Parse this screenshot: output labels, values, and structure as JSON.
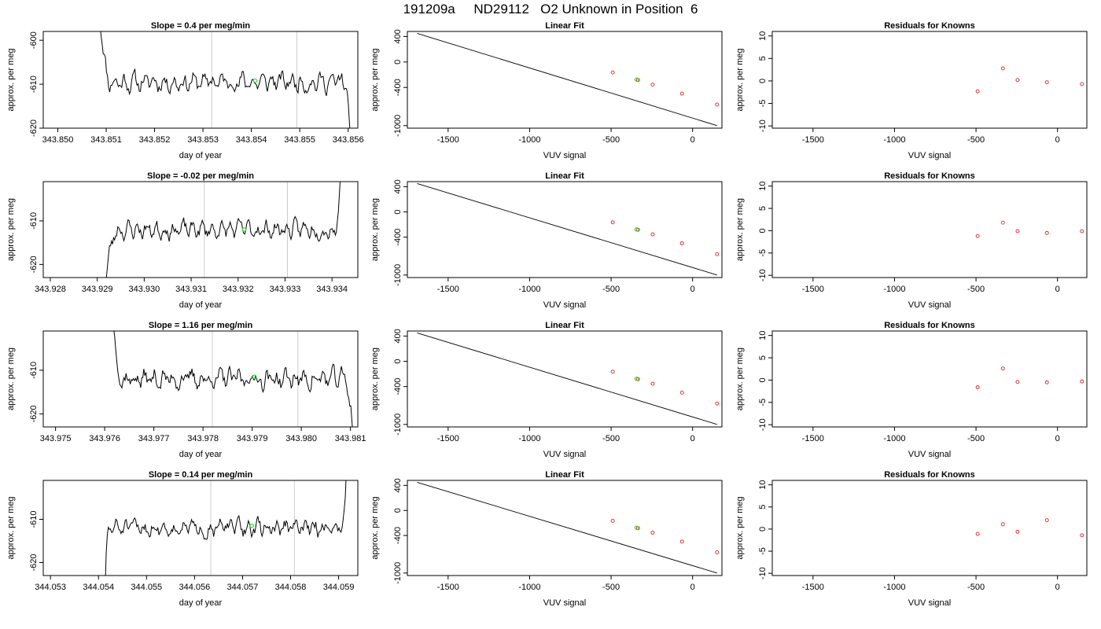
{
  "figure_title": "191209a     ND29112   O2 Unknown in Position  6",
  "chart_data": [
    {
      "row": 1,
      "panels": [
        {
          "type": "line",
          "panel": "timeseries",
          "title": "Slope =  0.4  per meg/min",
          "xlabel": "day of year",
          "ylabel": "approx. per meg",
          "xlim": [
            343.8497,
            343.8562
          ],
          "ylim": [
            -620,
            -598
          ],
          "xticks": [
            "343.850",
            "343.851",
            "343.852",
            "343.853",
            "343.854",
            "343.855",
            "343.856"
          ],
          "yticks": [
            "-600",
            "-610",
            "-620"
          ],
          "vlines": [
            343.85318,
            343.85494
          ],
          "highlight": {
            "x": 343.85408,
            "y": -609.2,
            "color": "#33dd33"
          },
          "trace": {
            "x_start": 343.85087,
            "x_end": 343.85605,
            "y_start": -594,
            "y_end": -623,
            "base": -609.5,
            "noise": 2.2,
            "points": 230,
            "seed": 11,
            "start_len": 10,
            "end_len": 6
          }
        },
        {
          "type": "scatter",
          "panel": "linear-fit",
          "title": "Linear Fit",
          "xlabel": "VUV signal",
          "ylabel": "approx. per meg",
          "xlim": [
            -1750,
            180
          ],
          "ylim": [
            -1040,
            480
          ],
          "xticks": [
            "-1500",
            "-1000",
            "-500",
            "0"
          ],
          "yticks": [
            "400",
            "0",
            "-400",
            "-1000"
          ],
          "line": {
            "x": [
              -1690,
              150
            ],
            "y": [
              450,
              -1000
            ]
          },
          "points": {
            "x": [
              -490,
              -335,
              -245,
              -65,
              150
            ],
            "y": [
              -165,
              -283,
              -355,
              -497,
              -669
            ]
          },
          "point_color": "#dd2222",
          "highlight": {
            "x": -343,
            "y": -277,
            "color": "#33dd33"
          }
        },
        {
          "type": "scatter",
          "panel": "residuals",
          "title": "Residuals for Knowns",
          "xlabel": "VUV signal",
          "ylabel": "approx. per meg",
          "xlim": [
            -1750,
            180
          ],
          "ylim": [
            -10.5,
            11
          ],
          "xticks": [
            "-1500",
            "-1000",
            "-500",
            "0"
          ],
          "yticks": [
            "10",
            "5",
            "0",
            "-5",
            "-10"
          ],
          "points": {
            "x": [
              -490,
              -335,
              -245,
              -65,
              150
            ],
            "y": [
              -2.3,
              2.8,
              0.2,
              -0.3,
              -0.7
            ]
          },
          "point_color": "#dd2222"
        }
      ]
    },
    {
      "row": 2,
      "panels": [
        {
          "type": "line",
          "panel": "timeseries",
          "title": "Slope =  -0.02  per meg/min",
          "xlabel": "day of year",
          "ylabel": "approx. per meg",
          "xlim": [
            343.92785,
            343.93455
          ],
          "ylim": [
            -623,
            -601
          ],
          "xticks": [
            "343.928",
            "343.929",
            "343.930",
            "343.931",
            "343.932",
            "343.933",
            "343.934"
          ],
          "yticks": [
            "-610",
            "-620"
          ],
          "vlines": [
            343.93128,
            343.93305
          ],
          "highlight": {
            "x": 343.93213,
            "y": -612,
            "color": "#33dd33"
          },
          "trace": {
            "x_start": 343.92915,
            "x_end": 343.93418,
            "y_start": -626,
            "y_end": -599,
            "base": -612,
            "noise": 2.0,
            "points": 230,
            "seed": 23,
            "start_len": 14,
            "end_len": 5
          }
        },
        {
          "type": "scatter",
          "panel": "linear-fit",
          "title": "Linear Fit",
          "xlabel": "VUV signal",
          "ylabel": "approx. per meg",
          "xlim": [
            -1750,
            180
          ],
          "ylim": [
            -1040,
            480
          ],
          "xticks": [
            "-1500",
            "-1000",
            "-500",
            "0"
          ],
          "yticks": [
            "400",
            "0",
            "-400",
            "-1000"
          ],
          "line": {
            "x": [
              -1690,
              150
            ],
            "y": [
              450,
              -1000
            ]
          },
          "points": {
            "x": [
              -490,
              -335,
              -245,
              -65,
              150
            ],
            "y": [
              -165,
              -283,
              -355,
              -497,
              -669
            ]
          },
          "point_color": "#dd2222",
          "highlight": {
            "x": -343,
            "y": -277,
            "color": "#33dd33"
          }
        },
        {
          "type": "scatter",
          "panel": "residuals",
          "title": "Residuals for Knowns",
          "xlabel": "VUV signal",
          "ylabel": "approx. per meg",
          "xlim": [
            -1750,
            180
          ],
          "ylim": [
            -10.5,
            11
          ],
          "xticks": [
            "-1500",
            "-1000",
            "-500",
            "0"
          ],
          "yticks": [
            "10",
            "5",
            "0",
            "-5",
            "-10"
          ],
          "points": {
            "x": [
              -490,
              -335,
              -245,
              -65,
              150
            ],
            "y": [
              -1.2,
              1.8,
              -0.1,
              -0.5,
              -0.1
            ]
          },
          "point_color": "#dd2222"
        }
      ]
    },
    {
      "row": 3,
      "panels": [
        {
          "type": "line",
          "panel": "timeseries",
          "title": "Slope =  1.16  per meg/min",
          "xlabel": "day of year",
          "ylabel": "approx. per meg",
          "xlim": [
            343.97475,
            343.98115
          ],
          "ylim": [
            -623,
            -601
          ],
          "xticks": [
            "343.975",
            "343.976",
            "343.977",
            "343.978",
            "343.979",
            "343.980",
            "343.981"
          ],
          "yticks": [
            "-610",
            "-620"
          ],
          "vlines": [
            343.97819,
            343.97993
          ],
          "highlight": {
            "x": 343.97905,
            "y": -611.5,
            "color": "#33dd33"
          },
          "trace": {
            "x_start": 343.97618,
            "x_end": 343.98105,
            "y_start": -599,
            "y_end": -625,
            "base": -612,
            "noise": 2.3,
            "points": 230,
            "seed": 37,
            "start_len": 8,
            "end_len": 8
          }
        },
        {
          "type": "scatter",
          "panel": "linear-fit",
          "title": "Linear Fit",
          "xlabel": "VUV signal",
          "ylabel": "approx. per meg",
          "xlim": [
            -1750,
            180
          ],
          "ylim": [
            -1040,
            480
          ],
          "xticks": [
            "-1500",
            "-1000",
            "-500",
            "0"
          ],
          "yticks": [
            "400",
            "0",
            "-400",
            "-1000"
          ],
          "line": {
            "x": [
              -1690,
              150
            ],
            "y": [
              450,
              -1000
            ]
          },
          "points": {
            "x": [
              -490,
              -335,
              -245,
              -65,
              150
            ],
            "y": [
              -165,
              -283,
              -355,
              -497,
              -669
            ]
          },
          "point_color": "#dd2222",
          "highlight": {
            "x": -343,
            "y": -277,
            "color": "#33dd33"
          }
        },
        {
          "type": "scatter",
          "panel": "residuals",
          "title": "Residuals for Knowns",
          "xlabel": "VUV signal",
          "ylabel": "approx. per meg",
          "xlim": [
            -1750,
            180
          ],
          "ylim": [
            -10.5,
            11
          ],
          "xticks": [
            "-1500",
            "-1000",
            "-500",
            "0"
          ],
          "yticks": [
            "10",
            "5",
            "0",
            "-5",
            "-10"
          ],
          "points": {
            "x": [
              -490,
              -335,
              -245,
              -65,
              150
            ],
            "y": [
              -1.6,
              2.6,
              -0.4,
              -0.5,
              -0.3
            ]
          },
          "point_color": "#dd2222"
        }
      ]
    },
    {
      "row": 4,
      "panels": [
        {
          "type": "line",
          "panel": "timeseries",
          "title": "Slope =  0.14  per meg/min",
          "xlabel": "day of year",
          "ylabel": "approx. per meg",
          "xlim": [
            344.05285,
            344.0594
          ],
          "ylim": [
            -623,
            -601
          ],
          "xticks": [
            "344.053",
            "344.054",
            "344.055",
            "344.056",
            "344.057",
            "344.058",
            "344.059"
          ],
          "yticks": [
            "-610",
            "-620"
          ],
          "vlines": [
            344.05634,
            344.05808
          ],
          "highlight": {
            "x": 344.05719,
            "y": -611.5,
            "color": "#33dd33"
          },
          "trace": {
            "x_start": 344.05414,
            "x_end": 344.05916,
            "y_start": -625,
            "y_end": -599,
            "base": -612,
            "noise": 2.0,
            "points": 230,
            "seed": 51,
            "start_len": 4,
            "end_len": 5
          }
        },
        {
          "type": "scatter",
          "panel": "linear-fit",
          "title": "Linear Fit",
          "xlabel": "VUV signal",
          "ylabel": "approx. per meg",
          "xlim": [
            -1750,
            180
          ],
          "ylim": [
            -1040,
            480
          ],
          "xticks": [
            "-1500",
            "-1000",
            "-500",
            "0"
          ],
          "yticks": [
            "400",
            "0",
            "-400",
            "-1000"
          ],
          "line": {
            "x": [
              -1690,
              150
            ],
            "y": [
              450,
              -1000
            ]
          },
          "points": {
            "x": [
              -490,
              -335,
              -245,
              -65,
              150
            ],
            "y": [
              -165,
              -283,
              -355,
              -497,
              -669
            ]
          },
          "point_color": "#dd2222",
          "highlight": {
            "x": -343,
            "y": -277,
            "color": "#33dd33"
          }
        },
        {
          "type": "scatter",
          "panel": "residuals",
          "title": "Residuals for Knowns",
          "xlabel": "VUV signal",
          "ylabel": "approx. per meg",
          "xlim": [
            -1750,
            180
          ],
          "ylim": [
            -10.5,
            11
          ],
          "xticks": [
            "-1500",
            "-1000",
            "-500",
            "0"
          ],
          "yticks": [
            "10",
            "5",
            "0",
            "-5",
            "-10"
          ],
          "points": {
            "x": [
              -490,
              -335,
              -245,
              -65,
              150
            ],
            "y": [
              -1.1,
              1.1,
              -0.6,
              2.0,
              -1.4
            ]
          },
          "point_color": "#dd2222"
        }
      ]
    }
  ]
}
